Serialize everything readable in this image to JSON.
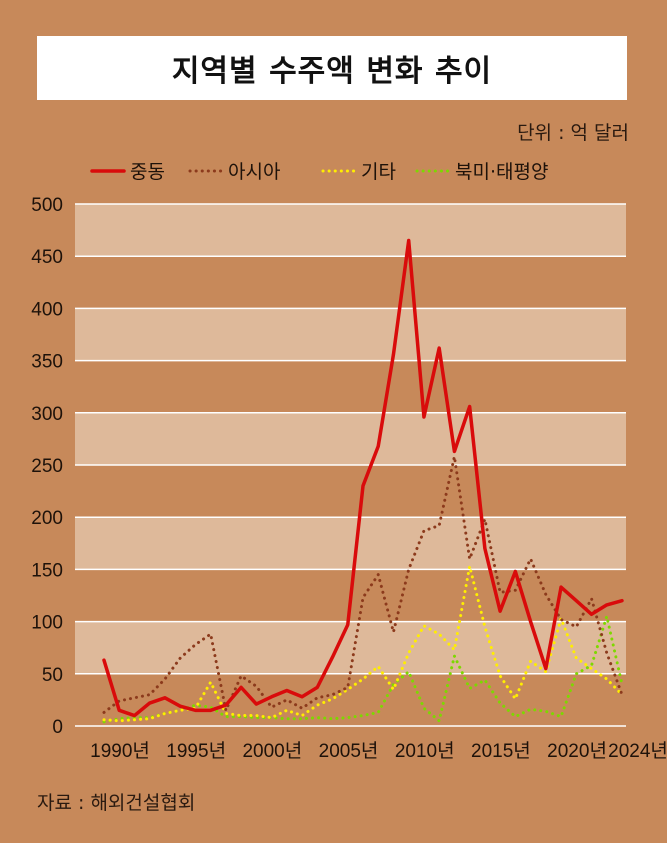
{
  "title": "지역별 수주액 변화 추이",
  "unit_label": "단위 : 억 달러",
  "source_label": "자료 : 해외건설협회",
  "colors": {
    "background": "#c7895a",
    "band": "#deb99a",
    "middle_east": "#d90b0b",
    "asia": "#8c3a1c",
    "other": "#ffee00",
    "na_pacific": "#7dd800"
  },
  "chart_data": {
    "type": "line",
    "title": "지역별 수주액 변화 추이",
    "xlabel": "",
    "ylabel": "",
    "ylim": [
      0,
      500
    ],
    "y_ticks": [
      "0",
      "50",
      "100",
      "150",
      "200",
      "250",
      "300",
      "350",
      "400",
      "450",
      "500"
    ],
    "x_tick_labels": [
      "1990년",
      "1995년",
      "2000년",
      "2005년",
      "2010년",
      "2015년",
      "2020년",
      "2024년"
    ],
    "x": [
      1990,
      1991,
      1992,
      1993,
      1994,
      1995,
      1996,
      1997,
      1998,
      1999,
      2000,
      2001,
      2002,
      2003,
      2004,
      2005,
      2006,
      2007,
      2008,
      2009,
      2010,
      2011,
      2012,
      2013,
      2014,
      2015,
      2016,
      2017,
      2018,
      2019,
      2020,
      2021,
      2022,
      2023,
      2024
    ],
    "grid": "alternating horizontal bands",
    "legend_position": "top",
    "series": [
      {
        "name": "중동",
        "style": "solid",
        "values": [
          63,
          15,
          10,
          22,
          27,
          19,
          15,
          15,
          20,
          37,
          21,
          28,
          34,
          28,
          37,
          66,
          97,
          230,
          268,
          356,
          465,
          296,
          362,
          263,
          306,
          170,
          110,
          148,
          100,
          55,
          133,
          120,
          107,
          116,
          120
        ]
      },
      {
        "name": "아시아",
        "style": "dotted",
        "values": [
          13,
          24,
          27,
          30,
          45,
          65,
          78,
          88,
          15,
          48,
          38,
          18,
          25,
          17,
          27,
          30,
          37,
          123,
          145,
          90,
          150,
          187,
          192,
          258,
          160,
          198,
          128,
          130,
          160,
          126,
          102,
          95,
          122,
          70,
          30
        ]
      },
      {
        "name": "기타",
        "style": "dotted",
        "values": [
          6,
          5,
          6,
          7,
          12,
          15,
          17,
          42,
          12,
          10,
          10,
          8,
          15,
          10,
          20,
          26,
          35,
          45,
          57,
          35,
          70,
          96,
          88,
          73,
          153,
          95,
          48,
          26,
          62,
          52,
          103,
          65,
          55,
          45,
          30
        ]
      },
      {
        "name": "북미·태평양",
        "style": "dotted",
        "values": [
          4,
          7,
          8,
          8,
          12,
          15,
          20,
          18,
          9,
          9,
          8,
          8,
          7,
          7,
          8,
          7,
          8,
          10,
          13,
          40,
          52,
          17,
          5,
          67,
          36,
          44,
          22,
          9,
          16,
          14,
          9,
          50,
          58,
          105,
          40
        ]
      }
    ]
  }
}
